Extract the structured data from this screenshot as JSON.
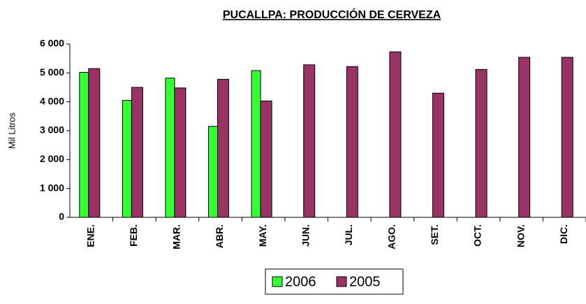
{
  "chart_data": {
    "type": "bar",
    "title": "PUCALLPA: PRODUCCIÓN DE CERVEZA",
    "y_axis_label": "Mil Litros",
    "categories": [
      "ENE.",
      "FEB.",
      "MAR.",
      "ABR.",
      "MAY.",
      "JUN.",
      "JUL.",
      "AGO.",
      "SET.",
      "OCT.",
      "NOV.",
      "DIC."
    ],
    "series": [
      {
        "name": "2006",
        "color": "#33ff33",
        "values": [
          5020,
          4050,
          4820,
          3150,
          5080,
          null,
          null,
          null,
          null,
          null,
          null,
          null
        ]
      },
      {
        "name": "2005",
        "color": "#993366",
        "values": [
          5150,
          4500,
          4480,
          4780,
          4030,
          5280,
          5220,
          5730,
          4300,
          5120,
          5540,
          5540
        ]
      }
    ],
    "ylim": [
      0,
      6000
    ],
    "yticks": [
      0,
      {
        "value": 1000,
        "label": "1 000"
      },
      {
        "value": 2000,
        "label": "2 000"
      },
      {
        "value": 3000,
        "label": "3 000"
      },
      {
        "value": 4000,
        "label": "4 000"
      },
      {
        "value": 5000,
        "label": "5 000"
      },
      {
        "value": 6000,
        "label": "6 000"
      }
    ],
    "legend": "bottom"
  }
}
